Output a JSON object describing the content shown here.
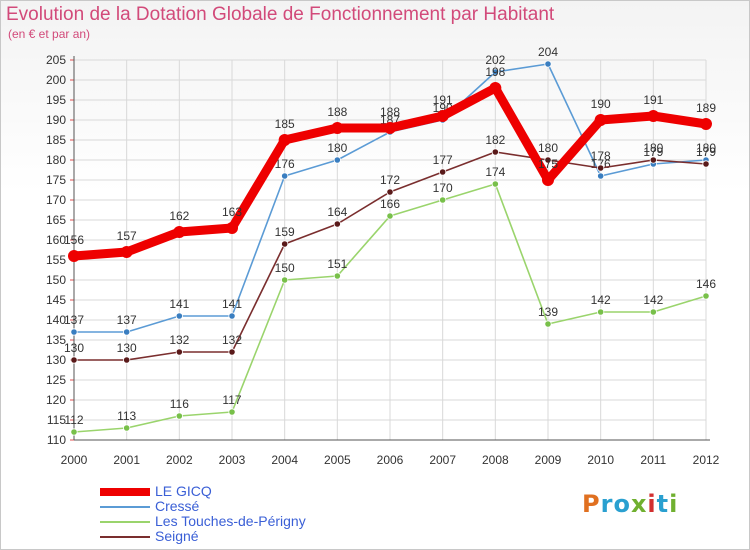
{
  "title": "Evolution de la Dotation Globale de Fonctionnement par Habitant",
  "subtitle": "(en € et par an)",
  "logo": {
    "text": "Proxiti",
    "colors": [
      "#e07020",
      "#2aa0d0",
      "#2aa0d0",
      "#70b030",
      "#d23030",
      "#2aa0d0",
      "#70b030"
    ]
  },
  "colors": {
    "accent": "#d24a7a",
    "grid": "#d9d9d9",
    "tick_marks": "#e05050"
  },
  "chart_data": {
    "type": "line",
    "x": [
      "2000",
      "2001",
      "2002",
      "2003",
      "2004",
      "2005",
      "2006",
      "2007",
      "2008",
      "2009",
      "2010",
      "2011",
      "2012"
    ],
    "ylim": [
      110,
      205
    ],
    "yticks": [
      110,
      115,
      120,
      125,
      130,
      135,
      140,
      145,
      150,
      155,
      160,
      165,
      170,
      175,
      180,
      185,
      190,
      195,
      200,
      205
    ],
    "grid": true,
    "legend_position": "bottom-left",
    "series": [
      {
        "name": "Cressé",
        "color": "#5b9bd5",
        "marker": "#3a7ec0",
        "values": [
          137,
          137,
          141,
          141,
          176,
          180,
          187,
          190,
          202,
          204,
          176,
          179,
          180
        ]
      },
      {
        "name": "Les Touches-de-Périgny",
        "color": "#9ad46c",
        "marker": "#78c04a",
        "values": [
          112,
          113,
          116,
          117,
          150,
          151,
          166,
          170,
          174,
          139,
          142,
          142,
          146
        ]
      },
      {
        "name": "Seigné",
        "color": "#7a2e2e",
        "marker": "#5a1a1a",
        "values": [
          130,
          130,
          132,
          132,
          159,
          164,
          172,
          177,
          182,
          180,
          178,
          180,
          179
        ]
      },
      {
        "name": "LE GICQ",
        "color": "#ee0000",
        "marker": "#ee0000",
        "values": [
          156,
          157,
          162,
          163,
          185,
          188,
          188,
          191,
          198,
          175,
          190,
          191,
          189
        ]
      }
    ],
    "legend": [
      {
        "name": "LE GICQ",
        "color": "#ee0000",
        "thickness": 8
      },
      {
        "name": "Cressé",
        "color": "#5b9bd5",
        "thickness": 2
      },
      {
        "name": "Les Touches-de-Périgny",
        "color": "#9ad46c",
        "thickness": 2
      },
      {
        "name": "Seigné",
        "color": "#7a2e2e",
        "thickness": 2
      }
    ]
  }
}
